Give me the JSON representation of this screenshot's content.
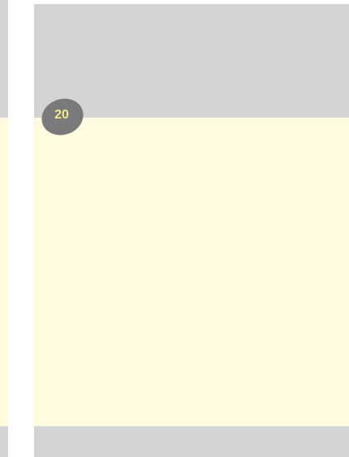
{
  "badge": {
    "label": "20"
  }
}
